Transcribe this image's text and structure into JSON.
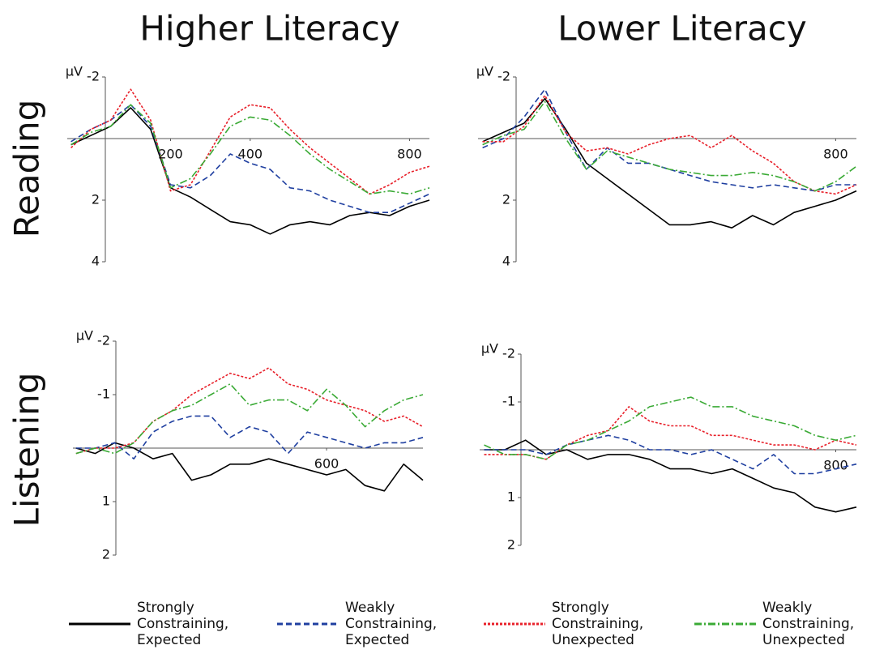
{
  "column_titles": [
    "Higher Literacy",
    "Lower Literacy"
  ],
  "row_labels": [
    "Reading",
    "Listening"
  ],
  "chart_data": [
    {
      "type": "line",
      "y_unit": "µV",
      "y_inverted": true,
      "x": [
        -50,
        0,
        50,
        100,
        150,
        200,
        250,
        300,
        350,
        400,
        450,
        500,
        550,
        600,
        650,
        700,
        750,
        800,
        850
      ],
      "xlim": [
        -100,
        850
      ],
      "xticks": [
        200,
        400,
        800
      ],
      "ylim": [
        -2,
        4
      ],
      "yticks": [
        -2,
        2,
        4
      ],
      "series": [
        {
          "name": "Strongly Constraining, Expected",
          "color": "#000000",
          "dash": "solid",
          "values": [
            0.2,
            -0.1,
            -0.4,
            -1.0,
            -0.3,
            1.6,
            1.9,
            2.3,
            2.7,
            2.8,
            3.1,
            2.8,
            2.7,
            2.8,
            2.5,
            2.4,
            2.5,
            2.2,
            2.0
          ]
        },
        {
          "name": "Weakly Constraining, Expected",
          "color": "#1f3fa0",
          "dash": "dashed",
          "values": [
            0.1,
            -0.3,
            -0.6,
            -1.1,
            -0.4,
            1.5,
            1.6,
            1.2,
            0.5,
            0.8,
            1.0,
            1.6,
            1.7,
            2.0,
            2.2,
            2.4,
            2.4,
            2.1,
            1.8
          ]
        },
        {
          "name": "Strongly Constraining, Unexpected",
          "color": "#e8202a",
          "dash": "dotted",
          "values": [
            0.3,
            -0.3,
            -0.6,
            -1.6,
            -0.6,
            1.7,
            1.5,
            0.4,
            -0.7,
            -1.1,
            -1.0,
            -0.3,
            0.3,
            0.8,
            1.3,
            1.8,
            1.5,
            1.1,
            0.9
          ]
        },
        {
          "name": "Weakly Constraining, Unexpected",
          "color": "#3aaa35",
          "dash": "dashdot",
          "values": [
            0.2,
            -0.2,
            -0.4,
            -1.1,
            -0.5,
            1.6,
            1.3,
            0.5,
            -0.4,
            -0.7,
            -0.6,
            -0.1,
            0.5,
            1.0,
            1.4,
            1.8,
            1.7,
            1.8,
            1.6
          ]
        }
      ]
    },
    {
      "type": "line",
      "y_unit": "µV",
      "y_inverted": true,
      "x": [
        -50,
        0,
        50,
        100,
        150,
        200,
        250,
        300,
        350,
        400,
        450,
        500,
        550,
        600,
        650,
        700,
        750,
        800,
        850
      ],
      "xlim": [
        -100,
        850
      ],
      "xticks": [
        800
      ],
      "ylim": [
        -2,
        4
      ],
      "yticks": [
        -2,
        2,
        4
      ],
      "series": [
        {
          "name": "Strongly Constraining, Expected",
          "color": "#000000",
          "dash": "solid",
          "values": [
            0.1,
            -0.2,
            -0.5,
            -1.3,
            -0.3,
            0.8,
            1.3,
            1.8,
            2.3,
            2.8,
            2.8,
            2.7,
            2.9,
            2.5,
            2.8,
            2.4,
            2.2,
            2.0,
            1.7
          ]
        },
        {
          "name": "Weakly Constraining, Expected",
          "color": "#1f3fa0",
          "dash": "dashed",
          "values": [
            0.3,
            0.0,
            -0.7,
            -1.6,
            -0.2,
            1.0,
            0.3,
            0.8,
            0.8,
            1.0,
            1.2,
            1.4,
            1.5,
            1.6,
            1.5,
            1.6,
            1.7,
            1.5,
            1.5
          ]
        },
        {
          "name": "Strongly Constraining, Unexpected",
          "color": "#e8202a",
          "dash": "dotted",
          "values": [
            0.1,
            0.1,
            -0.4,
            -1.4,
            -0.2,
            0.4,
            0.3,
            0.5,
            0.2,
            0.0,
            -0.1,
            0.3,
            -0.1,
            0.4,
            0.8,
            1.4,
            1.7,
            1.8,
            1.5
          ]
        },
        {
          "name": "Weakly Constraining, Unexpected",
          "color": "#3aaa35",
          "dash": "dashdot",
          "values": [
            0.2,
            -0.1,
            -0.3,
            -1.2,
            0.0,
            1.0,
            0.4,
            0.6,
            0.8,
            1.0,
            1.1,
            1.2,
            1.2,
            1.1,
            1.2,
            1.4,
            1.7,
            1.4,
            0.9
          ]
        }
      ]
    },
    {
      "type": "line",
      "y_unit": "µV",
      "y_inverted": true,
      "x": [
        -50,
        0,
        50,
        100,
        150,
        200,
        250,
        300,
        350,
        400,
        450,
        500,
        550,
        600,
        650,
        700,
        750,
        800,
        850
      ],
      "xlim": [
        -100,
        850
      ],
      "xticks": [
        600
      ],
      "ylim": [
        -2,
        2
      ],
      "yticks": [
        -2,
        -1,
        1,
        2
      ],
      "series": [
        {
          "name": "Strongly Constraining, Expected",
          "color": "#000000",
          "dash": "solid",
          "values": [
            0,
            0.1,
            -0.1,
            0,
            0.2,
            0.1,
            0.6,
            0.5,
            0.3,
            0.3,
            0.2,
            0.3,
            0.4,
            0.5,
            0.4,
            0.7,
            0.8,
            0.3,
            0.6
          ]
        },
        {
          "name": "Weakly Constraining, Expected",
          "color": "#1f3fa0",
          "dash": "dashed",
          "values": [
            0,
            0,
            -0.1,
            0.2,
            -0.3,
            -0.5,
            -0.6,
            -0.6,
            -0.2,
            -0.4,
            -0.3,
            0.1,
            -0.3,
            -0.2,
            -0.1,
            0,
            -0.1,
            -0.1,
            -0.2
          ]
        },
        {
          "name": "Strongly Constraining, Unexpected",
          "color": "#e8202a",
          "dash": "dotted",
          "values": [
            0.1,
            0,
            0,
            -0.1,
            -0.5,
            -0.7,
            -1.0,
            -1.2,
            -1.4,
            -1.3,
            -1.5,
            -1.2,
            -1.1,
            -0.9,
            -0.8,
            -0.7,
            -0.5,
            -0.6,
            -0.4
          ]
        },
        {
          "name": "Weakly Constraining, Unexpected",
          "color": "#3aaa35",
          "dash": "dashdot",
          "values": [
            0.1,
            0,
            0.1,
            -0.1,
            -0.5,
            -0.7,
            -0.8,
            -1.0,
            -1.2,
            -0.8,
            -0.9,
            -0.9,
            -0.7,
            -1.1,
            -0.8,
            -0.4,
            -0.7,
            -0.9,
            -1.0
          ]
        }
      ]
    },
    {
      "type": "line",
      "y_unit": "µV",
      "y_inverted": true,
      "x": [
        -50,
        0,
        50,
        100,
        150,
        200,
        250,
        300,
        350,
        400,
        450,
        500,
        550,
        600,
        650,
        700,
        750,
        800,
        850
      ],
      "xlim": [
        -100,
        850
      ],
      "xticks": [
        800
      ],
      "ylim": [
        -2,
        2
      ],
      "yticks": [
        -2,
        -1,
        1,
        2
      ],
      "series": [
        {
          "name": "Strongly Constraining, Expected",
          "color": "#000000",
          "dash": "solid",
          "values": [
            0,
            0,
            -0.2,
            0.1,
            0,
            0.2,
            0.1,
            0.1,
            0.2,
            0.4,
            0.4,
            0.5,
            0.4,
            0.6,
            0.8,
            0.9,
            1.2,
            1.3,
            1.2
          ]
        },
        {
          "name": "Weakly Constraining, Expected",
          "color": "#1f3fa0",
          "dash": "dashed",
          "values": [
            0,
            0,
            0,
            0.1,
            -0.1,
            -0.2,
            -0.3,
            -0.2,
            0,
            0,
            0.1,
            0,
            0.2,
            0.4,
            0.1,
            0.5,
            0.5,
            0.4,
            0.3
          ]
        },
        {
          "name": "Strongly Constraining, Unexpected",
          "color": "#e8202a",
          "dash": "dotted",
          "values": [
            0.1,
            0.1,
            0.1,
            0.2,
            -0.1,
            -0.3,
            -0.4,
            -0.9,
            -0.6,
            -0.5,
            -0.5,
            -0.3,
            -0.3,
            -0.2,
            -0.1,
            -0.1,
            0,
            -0.2,
            -0.1
          ]
        },
        {
          "name": "Weakly Constraining, Unexpected",
          "color": "#3aaa35",
          "dash": "dashdot",
          "values": [
            -0.1,
            0.1,
            0.1,
            0.2,
            -0.1,
            -0.2,
            -0.4,
            -0.6,
            -0.9,
            -1.0,
            -1.1,
            -0.9,
            -0.9,
            -0.7,
            -0.6,
            -0.5,
            -0.3,
            -0.2,
            -0.3
          ]
        }
      ]
    }
  ]
}
